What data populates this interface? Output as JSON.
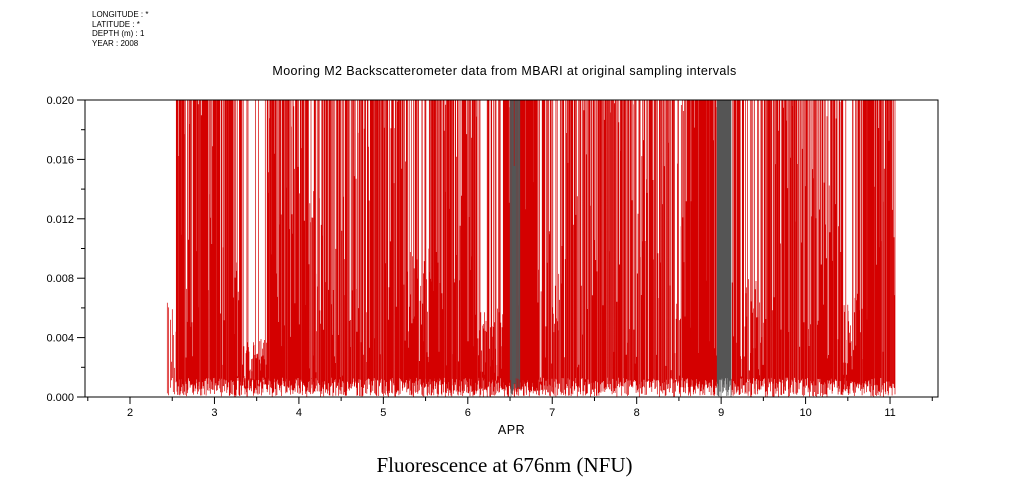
{
  "meta": {
    "longitude": "LONGITUDE : *",
    "latitude": "LATITUDE : *",
    "depth": "DEPTH (m) : 1",
    "year": "YEAR : 2008"
  },
  "title": "Mooring M2 Backscatterometer data from MBARI at original sampling intervals",
  "caption": "Fluorescence at 676nm (NFU)",
  "chart_data": {
    "type": "line",
    "title": "Mooring M2 Backscatterometer data from MBARI at original sampling intervals",
    "subtitle": "Fluorescence at 676nm (NFU)",
    "series_name": "Fluorescence at 676nm (NFU)",
    "series_color": "#d40000",
    "xlabel": "APR",
    "ylabel": "",
    "xlim": [
      1.467,
      11.568
    ],
    "ylim": [
      0.0,
      0.02
    ],
    "grid": false,
    "legend": "none",
    "xticks": [
      2,
      3,
      4,
      5,
      6,
      7,
      8,
      9,
      10,
      11
    ],
    "xtick_labels": [
      "2",
      "3",
      "4",
      "5",
      "6",
      "7",
      "8",
      "9",
      "10",
      "11"
    ],
    "yticks": [
      0.02,
      0.016,
      0.012,
      0.008,
      0.004,
      0.0
    ],
    "ytick_labels": [
      "0.020",
      "0.016",
      "0.012",
      "0.008",
      "0.004",
      "0.000"
    ],
    "data_extent": {
      "x_start": 2.44,
      "x_end": 11.06,
      "clip_max": 0.02
    },
    "description": "Dense high-frequency spike train oscillating between ~0 and the 0.020 clip level; quieter low-amplitude intervals near APR 3.4-3.6, 4.1-4.5, 5.3-5.6, 6.1-6.4, 9.1-9.5 and 10.4-10.7; very dense dark clusters near APR 6.55 and 9.0",
    "segments": [
      {
        "x0": 2.44,
        "x1": 2.54,
        "n": 7,
        "tall_prob": 0.0,
        "hmin": 0.0015,
        "hmax": 0.0065
      },
      {
        "x0": 2.54,
        "x1": 3.05,
        "n": 85,
        "tall_prob": 0.78,
        "hmin": 0.002,
        "hmax": 0.02
      },
      {
        "x0": 3.05,
        "x1": 3.34,
        "n": 48,
        "tall_prob": 0.6,
        "hmin": 0.001,
        "hmax": 0.012
      },
      {
        "x0": 3.34,
        "x1": 3.62,
        "n": 55,
        "tall_prob": 0.1,
        "hmin": 0.0006,
        "hmax": 0.004
      },
      {
        "x0": 3.62,
        "x1": 4.06,
        "n": 72,
        "tall_prob": 0.7,
        "hmin": 0.002,
        "hmax": 0.02
      },
      {
        "x0": 4.06,
        "x1": 4.56,
        "n": 80,
        "tall_prob": 0.5,
        "hmin": 0.001,
        "hmax": 0.014
      },
      {
        "x0": 4.56,
        "x1": 5.28,
        "n": 110,
        "tall_prob": 0.68,
        "hmin": 0.002,
        "hmax": 0.02
      },
      {
        "x0": 5.28,
        "x1": 5.66,
        "n": 70,
        "tall_prob": 0.4,
        "hmin": 0.002,
        "hmax": 0.01
      },
      {
        "x0": 5.66,
        "x1": 6.12,
        "n": 80,
        "tall_prob": 0.72,
        "hmin": 0.002,
        "hmax": 0.02
      },
      {
        "x0": 6.12,
        "x1": 6.42,
        "n": 55,
        "tall_prob": 0.3,
        "hmin": 0.001,
        "hmax": 0.006
      },
      {
        "x0": 6.42,
        "x1": 6.8,
        "n": 95,
        "tall_prob": 0.85,
        "hmin": 0.003,
        "hmax": 0.02
      },
      {
        "x0": 6.5,
        "x1": 6.62,
        "n": 16,
        "tall_prob": 0.9,
        "hmin": 0.003,
        "hmax": 0.02,
        "color": "#555555"
      },
      {
        "x0": 6.8,
        "x1": 7.12,
        "n": 50,
        "tall_prob": 0.5,
        "hmin": 0.001,
        "hmax": 0.012
      },
      {
        "x0": 7.12,
        "x1": 8.62,
        "n": 210,
        "tall_prob": 0.62,
        "hmin": 0.001,
        "hmax": 0.02
      },
      {
        "x0": 8.62,
        "x1": 8.95,
        "n": 70,
        "tall_prob": 0.8,
        "hmin": 0.002,
        "hmax": 0.02
      },
      {
        "x0": 8.95,
        "x1": 9.12,
        "n": 30,
        "tall_prob": 0.9,
        "hmin": 0.003,
        "hmax": 0.02,
        "color": "#555555"
      },
      {
        "x0": 9.12,
        "x1": 9.5,
        "n": 60,
        "tall_prob": 0.42,
        "hmin": 0.001,
        "hmax": 0.008
      },
      {
        "x0": 9.5,
        "x1": 10.42,
        "n": 135,
        "tall_prob": 0.7,
        "hmin": 0.002,
        "hmax": 0.02
      },
      {
        "x0": 10.42,
        "x1": 10.68,
        "n": 45,
        "tall_prob": 0.3,
        "hmin": 0.001,
        "hmax": 0.007
      },
      {
        "x0": 10.68,
        "x1": 11.06,
        "n": 62,
        "tall_prob": 0.78,
        "hmin": 0.002,
        "hmax": 0.02
      }
    ]
  }
}
